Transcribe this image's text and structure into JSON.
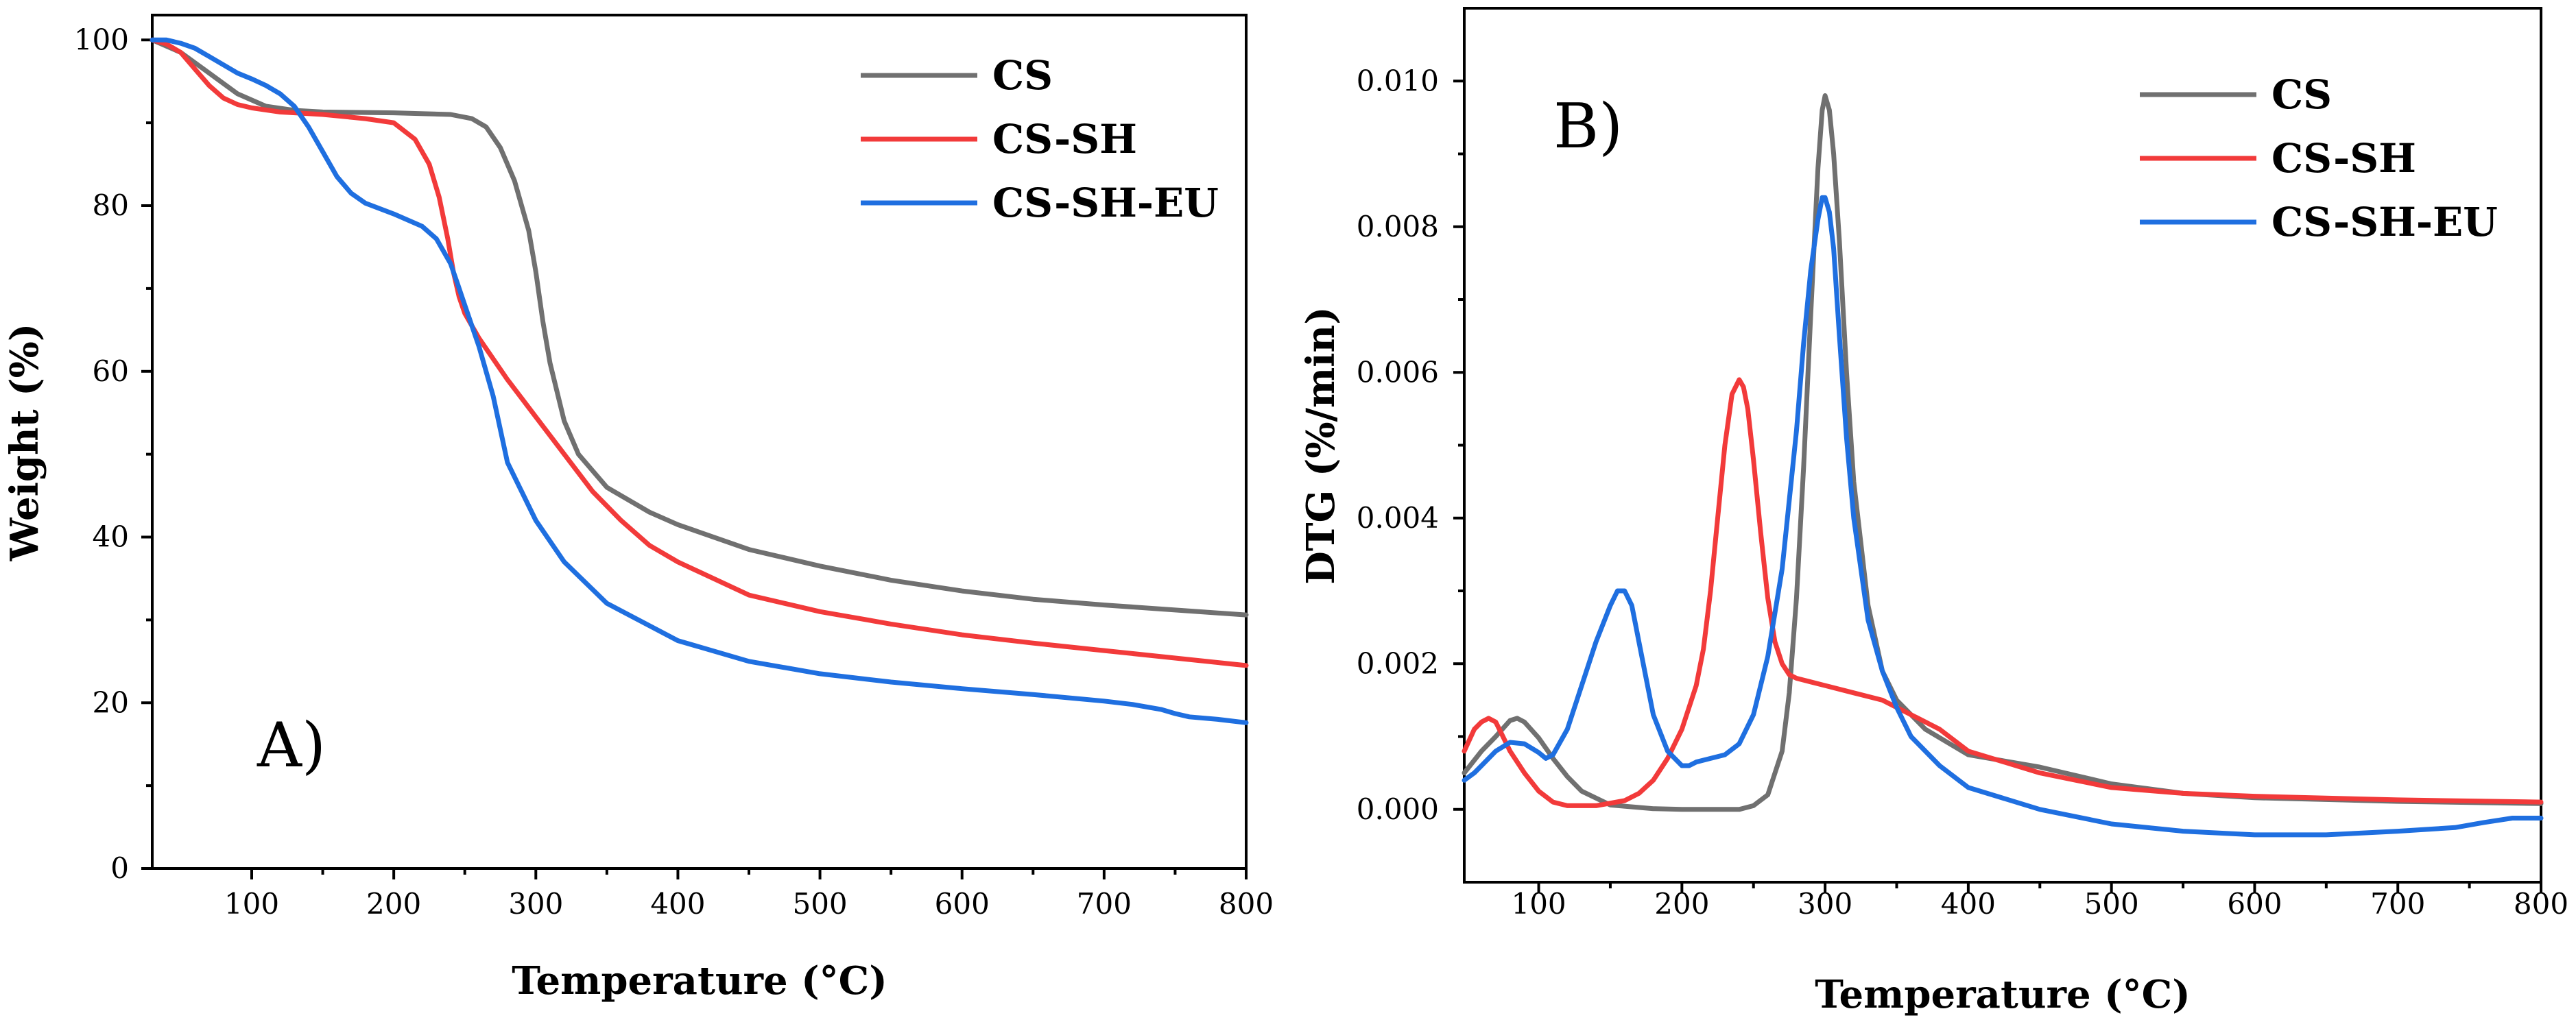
{
  "chart_data": [
    {
      "type": "line",
      "panel_label": "A)",
      "xlabel": "Temperature (°C)",
      "ylabel": "Weight (%)",
      "xlim": [
        30,
        800
      ],
      "ylim": [
        0,
        103
      ],
      "xticks": [
        100,
        200,
        300,
        400,
        500,
        600,
        700,
        800
      ],
      "yticks": [
        0,
        20,
        40,
        60,
        80,
        100
      ],
      "legend_position": "top-right",
      "series": [
        {
          "name": "CS",
          "color": "#707070",
          "x": [
            30,
            50,
            70,
            90,
            110,
            130,
            150,
            200,
            240,
            255,
            265,
            275,
            285,
            295,
            300,
            305,
            310,
            320,
            330,
            350,
            380,
            400,
            450,
            500,
            550,
            600,
            650,
            700,
            750,
            800
          ],
          "y": [
            100,
            98.5,
            96,
            93.5,
            92,
            91.5,
            91.3,
            91.2,
            91,
            90.5,
            89.5,
            87,
            83,
            77,
            72,
            66,
            61,
            54,
            50,
            46,
            43,
            41.5,
            38.5,
            36.5,
            34.8,
            33.5,
            32.5,
            31.8,
            31.2,
            30.6
          ]
        },
        {
          "name": "CS-SH",
          "color": "#f23a3a",
          "x": [
            30,
            40,
            50,
            60,
            70,
            80,
            90,
            100,
            120,
            150,
            180,
            200,
            215,
            225,
            232,
            238,
            242,
            246,
            250,
            260,
            280,
            300,
            320,
            340,
            360,
            380,
            400,
            450,
            500,
            550,
            600,
            650,
            700,
            750,
            800
          ],
          "y": [
            100,
            99.5,
            98.5,
            96.5,
            94.5,
            93,
            92.2,
            91.8,
            91.3,
            91,
            90.5,
            90,
            88,
            85,
            81,
            76,
            72,
            69,
            67,
            64,
            59,
            54.5,
            50,
            45.5,
            42,
            39,
            37,
            33,
            31,
            29.5,
            28.2,
            27.2,
            26.3,
            25.4,
            24.5
          ]
        },
        {
          "name": "CS-SH-EU",
          "color": "#1f6fe0",
          "x": [
            30,
            40,
            50,
            60,
            70,
            80,
            90,
            100,
            110,
            120,
            130,
            140,
            150,
            160,
            170,
            180,
            200,
            220,
            230,
            240,
            245,
            250,
            260,
            270,
            280,
            300,
            320,
            350,
            400,
            450,
            500,
            550,
            600,
            650,
            700,
            720,
            740,
            750,
            760,
            780,
            800
          ],
          "y": [
            100,
            100,
            99.6,
            99,
            98,
            97,
            96,
            95.3,
            94.5,
            93.5,
            92,
            89.5,
            86.5,
            83.5,
            81.5,
            80.3,
            79,
            77.5,
            76,
            73,
            70.5,
            68,
            63,
            57,
            49,
            42,
            37,
            32,
            27.5,
            25,
            23.5,
            22.5,
            21.7,
            21,
            20.2,
            19.8,
            19.2,
            18.7,
            18.3,
            18,
            17.6
          ]
        }
      ]
    },
    {
      "type": "line",
      "panel_label": "B)",
      "xlabel": "Temperature (°C)",
      "ylabel": "DTG (%/min)",
      "xlim": [
        48,
        800
      ],
      "ylim": [
        -0.001,
        0.011
      ],
      "xticks": [
        100,
        200,
        300,
        400,
        500,
        600,
        700,
        800
      ],
      "yticks": [
        0.0,
        0.002,
        0.004,
        0.006,
        0.008,
        0.01
      ],
      "ytick_labels": [
        "0.000",
        "0.002",
        "0.004",
        "0.006",
        "0.008",
        "0.010"
      ],
      "legend_position": "top-right",
      "series": [
        {
          "name": "CS",
          "color": "#707070",
          "x": [
            48,
            60,
            70,
            80,
            85,
            90,
            100,
            110,
            120,
            130,
            150,
            180,
            200,
            220,
            240,
            250,
            260,
            270,
            275,
            280,
            285,
            290,
            295,
            298,
            300,
            303,
            306,
            310,
            315,
            320,
            330,
            340,
            350,
            370,
            400,
            450,
            500,
            550,
            600,
            700,
            800
          ],
          "y": [
            0.0005,
            0.0008,
            0.001,
            0.00122,
            0.00125,
            0.0012,
            0.00098,
            0.0007,
            0.00045,
            0.00025,
            6e-05,
            1e-05,
            0.0,
            0.0,
            0.0,
            5e-05,
            0.0002,
            0.0008,
            0.0016,
            0.0029,
            0.0047,
            0.0068,
            0.0088,
            0.0096,
            0.0098,
            0.0096,
            0.009,
            0.0078,
            0.006,
            0.0045,
            0.0028,
            0.0019,
            0.0015,
            0.0011,
            0.00075,
            0.00058,
            0.00035,
            0.00022,
            0.00016,
            0.00011,
            8e-05
          ]
        },
        {
          "name": "CS-SH",
          "color": "#f23a3a",
          "x": [
            48,
            55,
            60,
            65,
            70,
            75,
            80,
            90,
            100,
            110,
            120,
            140,
            160,
            170,
            180,
            190,
            200,
            210,
            215,
            220,
            225,
            230,
            235,
            240,
            243,
            246,
            250,
            255,
            260,
            265,
            270,
            275,
            280,
            290,
            300,
            320,
            340,
            360,
            380,
            400,
            450,
            500,
            550,
            600,
            700,
            800
          ],
          "y": [
            0.0008,
            0.0011,
            0.0012,
            0.00125,
            0.0012,
            0.001,
            0.0008,
            0.0005,
            0.00025,
            0.0001,
            5e-05,
            5e-05,
            0.00012,
            0.00022,
            0.0004,
            0.0007,
            0.0011,
            0.0017,
            0.0022,
            0.003,
            0.004,
            0.005,
            0.0057,
            0.0059,
            0.0058,
            0.0055,
            0.0048,
            0.0038,
            0.0029,
            0.0023,
            0.002,
            0.00185,
            0.0018,
            0.00175,
            0.0017,
            0.0016,
            0.0015,
            0.0013,
            0.0011,
            0.0008,
            0.0005,
            0.0003,
            0.00022,
            0.00018,
            0.00013,
            0.0001
          ]
        },
        {
          "name": "CS-SH-EU",
          "color": "#1f6fe0",
          "x": [
            48,
            55,
            60,
            70,
            80,
            90,
            100,
            105,
            110,
            120,
            130,
            140,
            150,
            155,
            160,
            165,
            170,
            180,
            190,
            200,
            205,
            210,
            220,
            230,
            240,
            250,
            260,
            270,
            280,
            285,
            290,
            295,
            298,
            300,
            303,
            306,
            310,
            315,
            320,
            330,
            340,
            350,
            360,
            380,
            400,
            450,
            500,
            550,
            600,
            650,
            700,
            740,
            760,
            780,
            800
          ],
          "y": [
            0.0004,
            0.0005,
            0.0006,
            0.0008,
            0.00092,
            0.0009,
            0.00078,
            0.0007,
            0.00075,
            0.0011,
            0.0017,
            0.0023,
            0.0028,
            0.003,
            0.003,
            0.0028,
            0.0023,
            0.0013,
            0.0008,
            0.0006,
            0.0006,
            0.00065,
            0.0007,
            0.00075,
            0.0009,
            0.0013,
            0.0021,
            0.0033,
            0.0052,
            0.0064,
            0.0074,
            0.0081,
            0.0084,
            0.0084,
            0.0082,
            0.0077,
            0.0065,
            0.0051,
            0.004,
            0.0026,
            0.0019,
            0.0014,
            0.001,
            0.0006,
            0.0003,
            0.0,
            -0.0002,
            -0.0003,
            -0.00035,
            -0.00035,
            -0.0003,
            -0.00025,
            -0.00018,
            -0.00012,
            -0.00012
          ]
        }
      ]
    }
  ]
}
